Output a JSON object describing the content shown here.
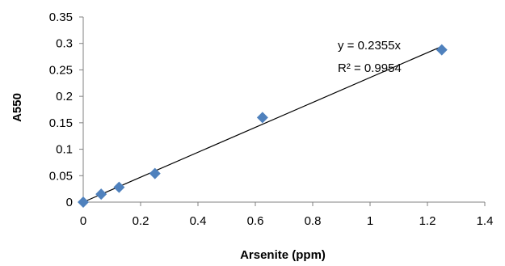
{
  "chart_data": {
    "type": "scatter",
    "xlabel": "Arsenite (ppm)",
    "ylabel": "A550",
    "xlim": [
      0,
      1.4
    ],
    "ylim": [
      0,
      0.35
    ],
    "x_ticks": [
      0,
      0.2,
      0.4,
      0.6,
      0.8,
      1,
      1.2,
      1.4
    ],
    "x_tick_labels": [
      "0",
      "0.2",
      "0.4",
      "0.6",
      "0.8",
      "1",
      "1.2",
      "1.4"
    ],
    "y_ticks": [
      0,
      0.05,
      0.1,
      0.15,
      0.2,
      0.25,
      0.3,
      0.35
    ],
    "y_tick_labels": [
      "0",
      "0.05",
      "0.1",
      "0.15",
      "0.2",
      "0.25",
      "0.3",
      "0.35"
    ],
    "grid": false,
    "legend": "none",
    "marker_color": "#4f81bd",
    "marker_shape": "diamond",
    "series": [
      {
        "points": [
          {
            "x": 0,
            "y": 0
          },
          {
            "x": 0.0625,
            "y": 0.015
          },
          {
            "x": 0.125,
            "y": 0.028
          },
          {
            "x": 0.25,
            "y": 0.054
          },
          {
            "x": 0.625,
            "y": 0.16
          },
          {
            "x": 1.25,
            "y": 0.288
          }
        ]
      }
    ],
    "trendline": {
      "type": "linear",
      "slope": 0.2355,
      "intercept": 0,
      "x_range": [
        0,
        1.25
      ],
      "color": "#000000",
      "equation_label": "y = 0.2355x",
      "r2_label": "R² = 0.9954"
    }
  }
}
